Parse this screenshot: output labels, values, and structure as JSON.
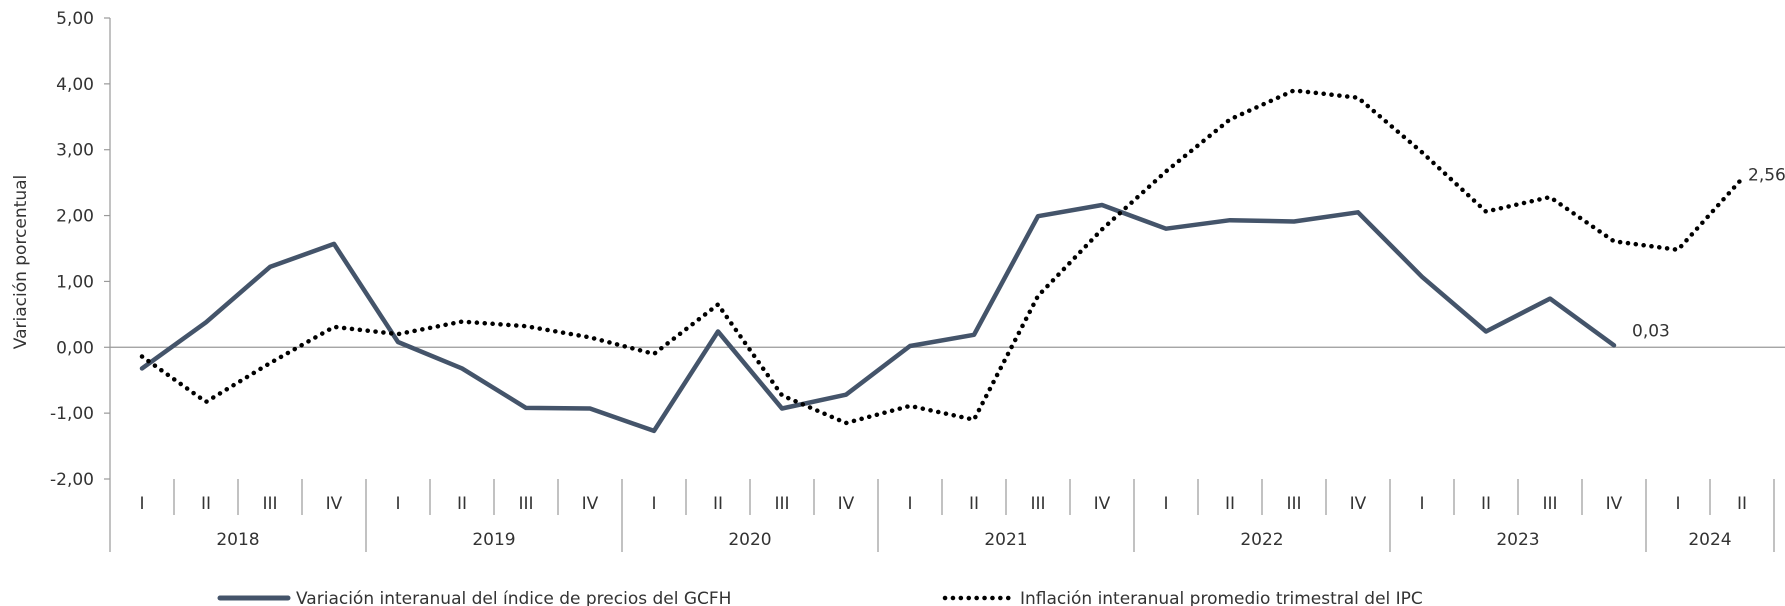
{
  "chart_data": {
    "type": "line",
    "ylabel": "Variación porcentual",
    "ylim": [
      -2,
      5
    ],
    "yticks": [
      "5,00",
      "4,00",
      "3,00",
      "2,00",
      "1,00",
      "0,00",
      "-1,00",
      "-2,00"
    ],
    "yticks_values": [
      5,
      4,
      3,
      2,
      1,
      0,
      -1,
      -2
    ],
    "years": [
      {
        "label": "2018",
        "quarters": [
          "I",
          "II",
          "III",
          "IV"
        ]
      },
      {
        "label": "2019",
        "quarters": [
          "I",
          "II",
          "III",
          "IV"
        ]
      },
      {
        "label": "2020",
        "quarters": [
          "I",
          "II",
          "III",
          "IV"
        ]
      },
      {
        "label": "2021",
        "quarters": [
          "I",
          "II",
          "III",
          "IV"
        ]
      },
      {
        "label": "2022",
        "quarters": [
          "I",
          "II",
          "III",
          "IV"
        ]
      },
      {
        "label": "2023",
        "quarters": [
          "I",
          "II",
          "III",
          "IV"
        ]
      },
      {
        "label": "2024",
        "quarters": [
          "I",
          "II"
        ]
      }
    ],
    "series": [
      {
        "name": "Variación interanual del índice de precios del GCFH",
        "style": "solid",
        "color": "#44546a",
        "values": [
          -0.32,
          0.38,
          1.22,
          1.57,
          0.08,
          -0.32,
          -0.92,
          -0.93,
          -1.27,
          0.24,
          -0.93,
          -0.72,
          0.02,
          0.19,
          1.99,
          2.16,
          1.8,
          1.93,
          1.91,
          2.05,
          1.07,
          0.24,
          0.74,
          0.03
        ],
        "end_label": "0,03"
      },
      {
        "name": "Inflación interanual promedio trimestral del IPC",
        "style": "dotted",
        "color": "#000000",
        "values": [
          -0.14,
          -0.83,
          -0.24,
          0.31,
          0.2,
          0.39,
          0.32,
          0.15,
          -0.1,
          0.65,
          -0.73,
          -1.15,
          -0.89,
          -1.1,
          0.78,
          1.79,
          2.67,
          3.46,
          3.9,
          3.79,
          2.96,
          2.06,
          2.28,
          1.61,
          1.48,
          2.56
        ],
        "end_label": "2,56"
      }
    ]
  }
}
